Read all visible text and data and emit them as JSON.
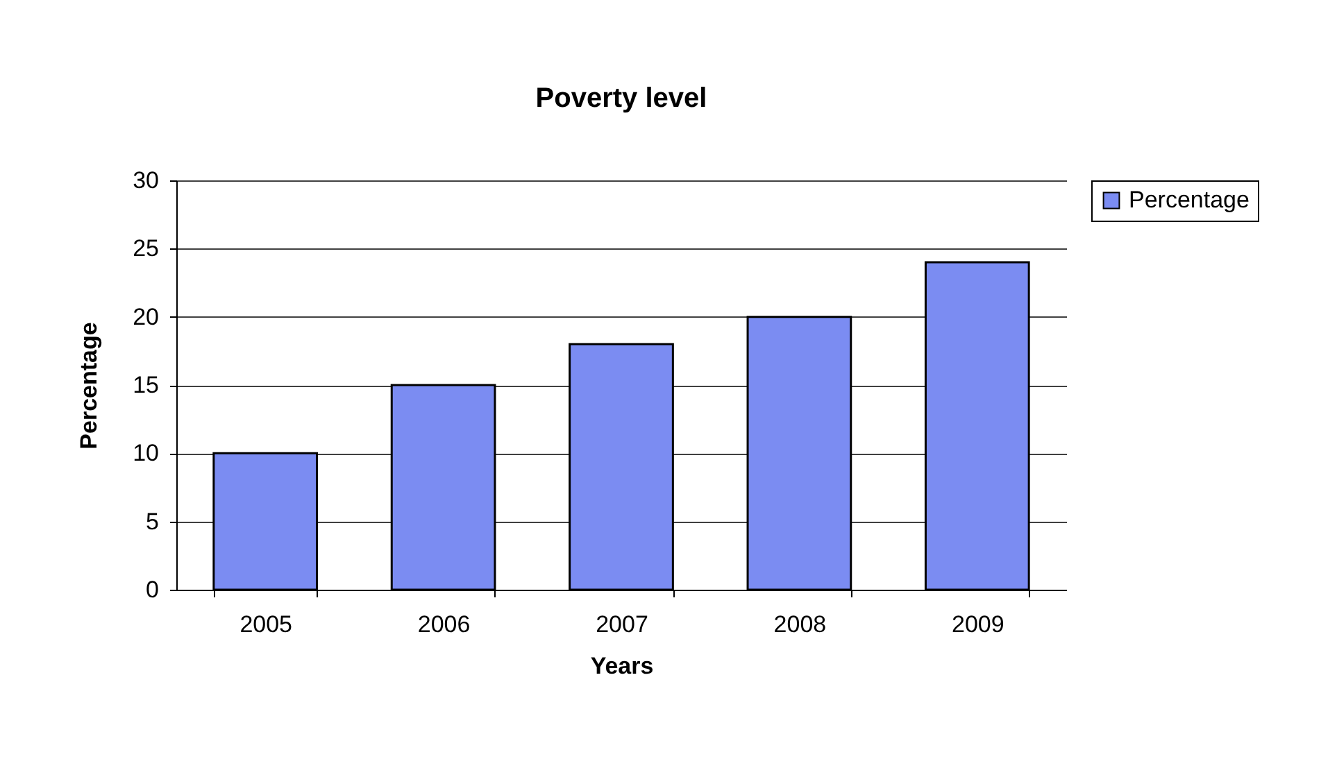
{
  "chart_data": {
    "type": "bar",
    "title": "Poverty level",
    "xlabel": "Years",
    "ylabel": "Percentage",
    "categories": [
      "2005",
      "2006",
      "2007",
      "2008",
      "2009"
    ],
    "series": [
      {
        "name": "Percentage",
        "color": "#7b8cf2",
        "values": [
          10,
          15,
          18,
          20,
          24
        ]
      }
    ],
    "ylim": [
      0,
      30
    ],
    "yticks": [
      0,
      5,
      10,
      15,
      20,
      25,
      30
    ],
    "grid": "y",
    "legend": "right"
  }
}
